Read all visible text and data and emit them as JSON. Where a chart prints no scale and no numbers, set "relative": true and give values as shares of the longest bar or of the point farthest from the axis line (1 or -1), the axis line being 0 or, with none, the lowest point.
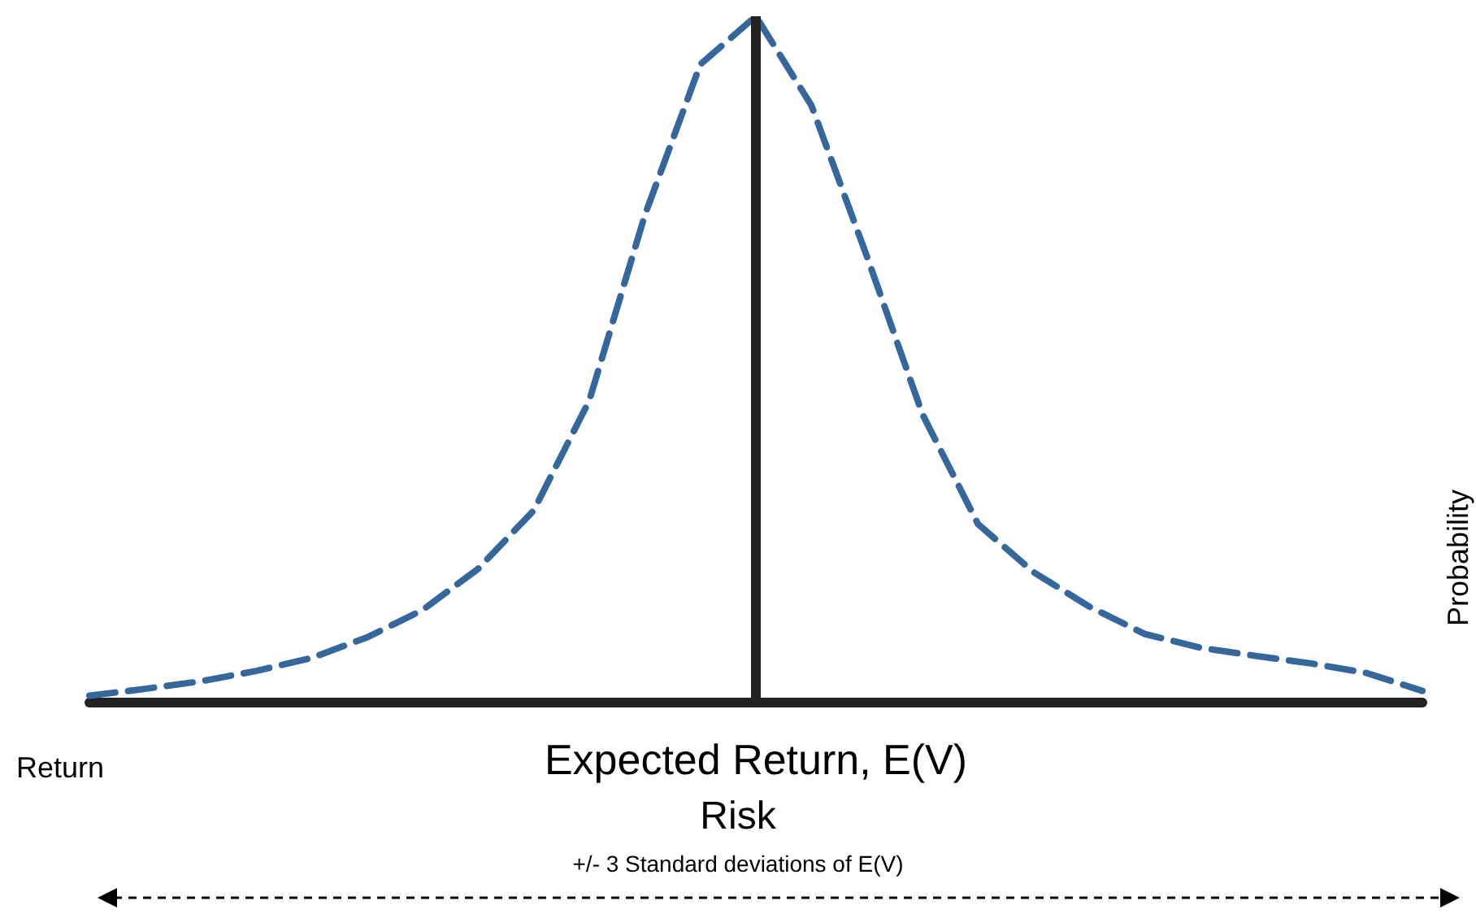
{
  "chart_data": {
    "type": "line",
    "relative": true,
    "xlabel": "Return",
    "ylabel": "Probability",
    "annotations": [
      "Expected Return, E(V)",
      "Risk",
      "+/- 3 Standard deviations of E(V)"
    ],
    "categories": [
      null,
      null,
      null,
      null,
      null,
      null,
      null,
      null,
      null,
      null,
      null,
      null,
      null,
      null,
      null,
      null,
      null,
      null,
      null,
      null,
      null,
      null,
      null,
      null,
      null
    ],
    "series": [
      {
        "color": "#36679c",
        "values": [
          0.01,
          0.02,
          0.031,
          0.046,
          0.065,
          0.095,
          0.135,
          0.195,
          0.28,
          0.44,
          0.71,
          0.93,
          1,
          0.87,
          0.65,
          0.42,
          0.26,
          0.19,
          0.14,
          0.1,
          0.08,
          0.068,
          0.057,
          0.043,
          0.017
        ]
      }
    ],
    "tick_labels": false,
    "grid": false,
    "marker": "none",
    "line_style": "dashed"
  }
}
